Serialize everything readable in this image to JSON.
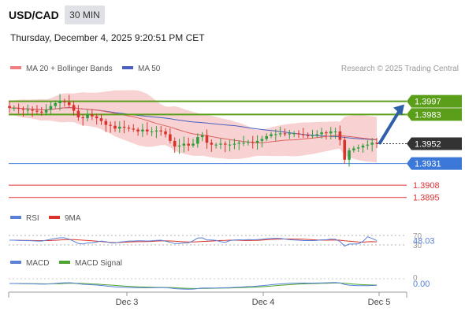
{
  "header": {
    "symbol": "USD/CAD",
    "timeframe": "30 MIN",
    "datetime": "Thursday, December 4, 2025 9:20:51 PM CET"
  },
  "legend": {
    "ma20_bb": "MA 20 + Bollinger Bands",
    "ma50": "MA 50",
    "credit": "Research © 2025 Trading Central",
    "rsi": "RSI",
    "rsi_ma": "9MA",
    "macd": "MACD",
    "macd_signal": "MACD Signal"
  },
  "colors": {
    "resistance": "#5a9e1a",
    "support": "#3b78d8",
    "extra_level": "#e03030",
    "arrow": "#2f5fa8",
    "bull_candle": "#2e9e3e",
    "bear_candle": "#d9342b",
    "ma20": "#e06060",
    "bollinger_fill": "#f6c3c3",
    "ma50": "#4a5fc0",
    "rsi_line": "#5a7fd8",
    "rsi_ma_line": "#d9342b",
    "macd_line": "#5a7fd8",
    "macd_signal_line": "#4aa52e",
    "price_badge": "#333333"
  },
  "chart_data": {
    "type": "candlestick",
    "x_labels": [
      "Dec 3",
      "Dec 4",
      "Dec 5"
    ],
    "price_range": [
      1.3888,
      1.4
    ],
    "current_price": 1.3952,
    "levels": [
      {
        "label": "1.3997",
        "value": 1.3997,
        "kind": "resistance"
      },
      {
        "label": "1.3983",
        "value": 1.3983,
        "kind": "resistance"
      },
      {
        "label": "1.3952",
        "value": 1.3952,
        "kind": "current"
      },
      {
        "label": "1.3931",
        "value": 1.3931,
        "kind": "support"
      },
      {
        "label": "1.3908",
        "value": 1.3908,
        "kind": "extra"
      },
      {
        "label": "1.3895",
        "value": 1.3895,
        "kind": "extra"
      }
    ],
    "close": [
      1.399,
      1.399,
      1.3989,
      1.3988,
      1.3988,
      1.3987,
      1.3986,
      1.3985,
      1.3988,
      1.3992,
      1.3995,
      1.3997,
      1.3996,
      1.3993,
      1.3987,
      1.398,
      1.3979,
      1.3983,
      1.3981,
      1.3979,
      1.3976,
      1.3972,
      1.3971,
      1.3968,
      1.397,
      1.3969,
      1.3968,
      1.3967,
      1.3965,
      1.3967,
      1.3965,
      1.3965,
      1.3966,
      1.3965,
      1.3962,
      1.3955,
      1.3949,
      1.395,
      1.3952,
      1.395,
      1.3952,
      1.3959,
      1.3961,
      1.3953,
      1.3951,
      1.3951,
      1.3952,
      1.3951,
      1.3951,
      1.3952,
      1.3953,
      1.3953,
      1.3954,
      1.3953,
      1.3955,
      1.3957,
      1.396,
      1.3962,
      1.3962,
      1.3963,
      1.3962,
      1.3963,
      1.3963,
      1.3962,
      1.3961,
      1.396,
      1.3961,
      1.3962,
      1.3964,
      1.3963,
      1.3965,
      1.3965,
      1.3956,
      1.3935,
      1.3945,
      1.3947,
      1.3948,
      1.395,
      1.3951,
      1.3953,
      1.3952
    ],
    "rsi": {
      "levels": [
        70,
        30
      ],
      "current": 48.03
    },
    "macd": {
      "zero_level": 0,
      "current": -0.0
    }
  }
}
